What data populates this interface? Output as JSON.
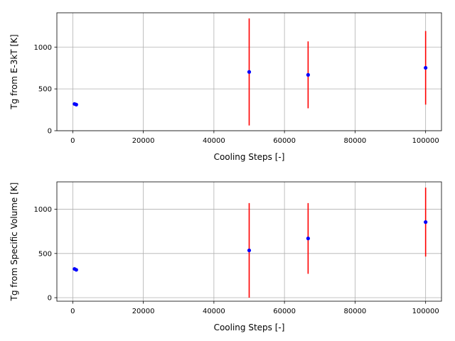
{
  "chart_data": [
    {
      "type": "scatter",
      "title": "",
      "xlabel": "Cooling Steps [-]",
      "ylabel": "Tg from E-3kT [K]",
      "xlim": [
        -4500,
        104500
      ],
      "ylim": [
        0,
        1410
      ],
      "xticks": [
        0,
        20000,
        40000,
        60000,
        80000,
        100000
      ],
      "yticks": [
        0,
        500,
        1000
      ],
      "grid": true,
      "series": [
        {
          "marker_color": "#0000ff",
          "errorbar_color": "#ff0000",
          "points": [
            {
              "x": 500,
              "y": 320,
              "err": 0
            },
            {
              "x": 1000,
              "y": 312,
              "err": 0
            },
            {
              "x": 50000,
              "y": 703,
              "err": 640
            },
            {
              "x": 66700,
              "y": 668,
              "err": 400
            },
            {
              "x": 100000,
              "y": 752,
              "err": 440
            }
          ]
        }
      ]
    },
    {
      "type": "scatter",
      "title": "",
      "xlabel": "Cooling Steps [-]",
      "ylabel": "Tg from Specific Volume [K]",
      "xlim": [
        -4500,
        104500
      ],
      "ylim": [
        -40,
        1310
      ],
      "xticks": [
        0,
        20000,
        40000,
        60000,
        80000,
        100000
      ],
      "yticks": [
        0,
        500,
        1000
      ],
      "grid": true,
      "series": [
        {
          "marker_color": "#0000ff",
          "errorbar_color": "#ff0000",
          "points": [
            {
              "x": 500,
              "y": 325,
              "err": 0
            },
            {
              "x": 1000,
              "y": 315,
              "err": 0
            },
            {
              "x": 50000,
              "y": 535,
              "err": 535
            },
            {
              "x": 66700,
              "y": 670,
              "err": 400
            },
            {
              "x": 100000,
              "y": 855,
              "err": 390
            }
          ]
        }
      ]
    }
  ]
}
